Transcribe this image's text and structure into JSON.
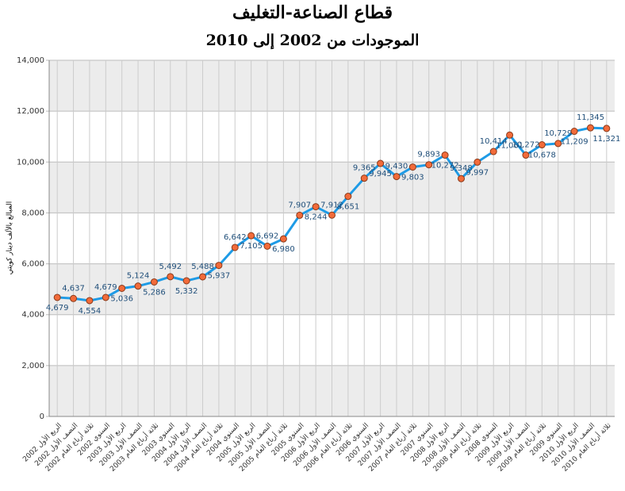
{
  "chart_data": {
    "type": "line",
    "title": "قطاع الصناعة-التغليف",
    "subtitle": "الموجودات من 2002 إلى 2010",
    "y_label": "المبالغ بالألف دينار كويتي",
    "categories": [
      "الربع الأول 2002",
      "النصف الأول 2002",
      "ثلاثة أرباع العام 2002",
      "السنوي 2002",
      "الربع الأول 2003",
      "النصف الأول 2003",
      "ثلاثة أرباع العام 2003",
      "السنوي 2003",
      "الربع الأول 2004",
      "النصف الأول 2004",
      "ثلاثة أرباع العام 2004",
      "السنوي 2004",
      "الربع الأول 2005",
      "النصف الأول 2005",
      "ثلاثة أرباع العام 2005",
      "السنوي 2005",
      "الربع الأول 2006",
      "النصف الأول 2006",
      "ثلاثة أرباع العام 2006",
      "السنوي 2006",
      "الربع الأول 2007",
      "النصف الأول 2007",
      "ثلاثة أرباع العام 2007",
      "السنوي 2007",
      "الربع الأول 2008",
      "النصف الأول 2008",
      "ثلاثة أرباع العام 2008",
      "السنوي 2008",
      "الربع الأول 2009",
      "النصف الأول 2009",
      "ثلاثة أرباع العام 2009",
      "السنوي 2009",
      "الربع الأول 2010",
      "النصف الأول 2010",
      "ثلاثة أرباع العام 2010"
    ],
    "series": [
      {
        "color": "#1e9be6",
        "marker_color": "#f26b3a",
        "values": [
          4679,
          4637,
          4554,
          4679,
          5036,
          5124,
          5286,
          5492,
          5332,
          5488,
          5937,
          6642,
          7105,
          6692,
          6980,
          7907,
          8244,
          7912,
          8651,
          9365,
          9945,
          9430,
          9803,
          9893,
          10272,
          9348,
          9997,
          10414,
          11061,
          10272,
          10678,
          10729,
          11209,
          11345,
          11321
        ],
        "value_labels": [
          "4,679",
          "4,637",
          "4,554",
          "4,679",
          "5,036",
          "5,124",
          "5,286",
          "5,492",
          "5,332",
          "5,488",
          "5,937",
          "6,642",
          "7,105",
          "6,692",
          "6,980",
          "7,907",
          "8,244",
          "7,912",
          "8,651",
          "9,365",
          "9,945",
          "9,430",
          "9,803",
          "9,893",
          "10,272",
          "9,348",
          "9,997",
          "10,414",
          "11,061",
          "10,272",
          "10,678",
          "10,729",
          "11,209",
          "11,345",
          "11,321"
        ]
      }
    ],
    "ylim": [
      0,
      14000
    ],
    "yticks": [
      0,
      {
        "value": 2000,
        "label": "2,000"
      },
      {
        "value": 4000,
        "label": "4,000"
      },
      {
        "value": 6000,
        "label": "6,000"
      },
      {
        "value": 8000,
        "label": "8,000"
      },
      {
        "value": 10000,
        "label": "10,000"
      },
      {
        "value": 12000,
        "label": "12,000"
      },
      {
        "value": 14000,
        "label": "14,000"
      }
    ],
    "grid": true
  }
}
